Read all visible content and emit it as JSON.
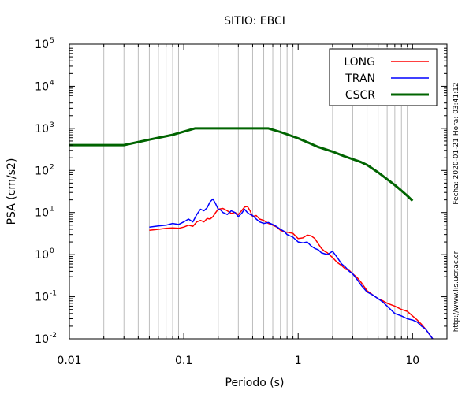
{
  "chart_data": {
    "type": "line",
    "title": "SITIO: EBCI",
    "xlabel": "Periodo (s)",
    "ylabel": "PSA (cm/s2)",
    "xscale": "log",
    "yscale": "log",
    "xlim": [
      0.01,
      20
    ],
    "ylim": [
      0.01,
      100000
    ],
    "grid": "vertical minor only",
    "legend_position": "top-right",
    "x_ticks": [
      {
        "value": 0.01,
        "label": "0.01"
      },
      {
        "value": 0.1,
        "label": "0.1"
      },
      {
        "value": 1,
        "label": "1"
      },
      {
        "value": 10,
        "label": "10"
      }
    ],
    "y_ticks": [
      {
        "value": 0.01,
        "base": "10",
        "exp": "-2"
      },
      {
        "value": 0.1,
        "base": "10",
        "exp": "-1"
      },
      {
        "value": 1,
        "base": "10",
        "exp": "0"
      },
      {
        "value": 10,
        "base": "10",
        "exp": "1"
      },
      {
        "value": 100,
        "base": "10",
        "exp": "2"
      },
      {
        "value": 1000,
        "base": "10",
        "exp": "3"
      },
      {
        "value": 10000,
        "base": "10",
        "exp": "4"
      },
      {
        "value": 100000,
        "base": "10",
        "exp": "5"
      }
    ],
    "series": [
      {
        "name": "LONG",
        "color": "#ff0000",
        "width": 1.5,
        "x": [
          0.05,
          0.06,
          0.07,
          0.08,
          0.09,
          0.1,
          0.11,
          0.12,
          0.13,
          0.14,
          0.15,
          0.16,
          0.17,
          0.18,
          0.19,
          0.2,
          0.22,
          0.24,
          0.26,
          0.28,
          0.3,
          0.32,
          0.34,
          0.36,
          0.38,
          0.4,
          0.43,
          0.46,
          0.5,
          0.55,
          0.6,
          0.65,
          0.7,
          0.75,
          0.8,
          0.9,
          1.0,
          1.1,
          1.2,
          1.3,
          1.4,
          1.5,
          1.6,
          1.7,
          1.8,
          2.0,
          2.2,
          2.4,
          2.6,
          2.8,
          3.0,
          3.3,
          3.6,
          4.0,
          4.5,
          5.0,
          5.5,
          6.0,
          7.0,
          8.0,
          9.0,
          10.0,
          11.0,
          12.0,
          13.0,
          14.0,
          15.0
        ],
        "y": [
          3.8,
          4.0,
          4.2,
          4.3,
          4.2,
          4.5,
          5.0,
          4.7,
          6.0,
          6.5,
          6.0,
          7.2,
          7.0,
          8.0,
          10.0,
          12.0,
          12.5,
          11.0,
          9.5,
          10.0,
          9.0,
          11.0,
          13.5,
          14.0,
          11.0,
          8.0,
          8.5,
          7.0,
          6.5,
          5.5,
          5.0,
          4.5,
          3.8,
          3.5,
          3.4,
          3.2,
          2.4,
          2.5,
          2.9,
          2.8,
          2.4,
          1.8,
          1.4,
          1.2,
          1.1,
          0.85,
          0.65,
          0.55,
          0.45,
          0.42,
          0.35,
          0.28,
          0.21,
          0.14,
          0.11,
          0.09,
          0.08,
          0.07,
          0.06,
          0.05,
          0.045,
          0.035,
          0.028,
          0.022,
          0.017,
          0.013,
          0.01
        ]
      },
      {
        "name": "TRAN",
        "color": "#0000ff",
        "width": 1.5,
        "x": [
          0.05,
          0.06,
          0.07,
          0.08,
          0.09,
          0.1,
          0.11,
          0.12,
          0.13,
          0.14,
          0.15,
          0.16,
          0.17,
          0.18,
          0.19,
          0.2,
          0.21,
          0.22,
          0.24,
          0.26,
          0.28,
          0.3,
          0.32,
          0.34,
          0.36,
          0.38,
          0.4,
          0.43,
          0.46,
          0.5,
          0.55,
          0.6,
          0.65,
          0.7,
          0.75,
          0.8,
          0.9,
          1.0,
          1.1,
          1.2,
          1.3,
          1.4,
          1.5,
          1.6,
          1.8,
          2.0,
          2.2,
          2.4,
          2.6,
          2.8,
          3.0,
          3.3,
          3.6,
          4.0,
          4.5,
          5.0,
          5.5,
          6.0,
          7.0,
          8.0,
          9.0,
          10.0,
          11.0,
          12.0,
          13.0,
          14.0,
          15.0
        ],
        "y": [
          4.5,
          4.8,
          5.0,
          5.5,
          5.2,
          6.0,
          7.0,
          6.0,
          9.0,
          12.0,
          11.0,
          13.0,
          18.0,
          21.0,
          16.0,
          12.0,
          11.5,
          10.0,
          9.0,
          11.0,
          10.0,
          8.0,
          9.5,
          12.0,
          10.0,
          9.0,
          8.5,
          7.0,
          6.0,
          5.5,
          5.8,
          5.2,
          4.6,
          4.0,
          3.6,
          3.0,
          2.6,
          2.0,
          1.9,
          2.0,
          1.6,
          1.4,
          1.3,
          1.1,
          1.0,
          1.2,
          0.85,
          0.6,
          0.5,
          0.4,
          0.35,
          0.25,
          0.18,
          0.13,
          0.11,
          0.09,
          0.075,
          0.06,
          0.04,
          0.035,
          0.03,
          0.028,
          0.025,
          0.02,
          0.017,
          0.013,
          0.01
        ]
      },
      {
        "name": "CSCR",
        "color": "#006400",
        "width": 3,
        "x": [
          0.01,
          0.02,
          0.03,
          0.05,
          0.08,
          0.125,
          0.2,
          0.3,
          0.4,
          0.55,
          0.7,
          0.8,
          1.0,
          1.2,
          1.5,
          2.0,
          2.5,
          3.0,
          3.5,
          4.0,
          5.0,
          6.0,
          7.0,
          8.0,
          9.0,
          10.0
        ],
        "y": [
          400,
          400,
          400,
          540,
          700,
          1000,
          1000,
          1000,
          1000,
          1000,
          820,
          720,
          580,
          470,
          360,
          280,
          220,
          185,
          160,
          135,
          90,
          62,
          45,
          33,
          25,
          19
        ]
      }
    ]
  },
  "side_text": {
    "timestamp": "Fecha: 2020-01-21  Hora: 03:41:12",
    "url": "http://www.lis.ucr.ac.cr"
  }
}
